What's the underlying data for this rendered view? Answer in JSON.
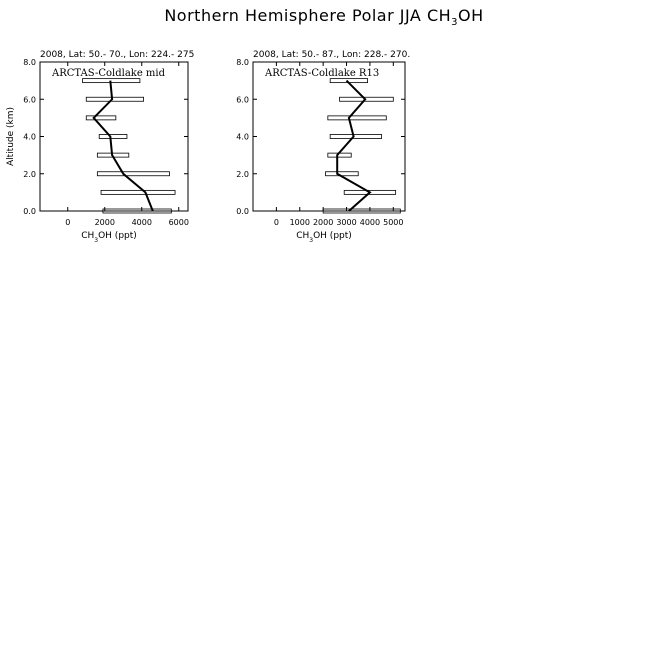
{
  "title": {
    "prefix": "Northern Hemisphere Polar JJA CH",
    "sub": "3",
    "suffix": "OH"
  },
  "colors": {
    "line": "#000000",
    "box": "#000000",
    "background": "#ffffff"
  },
  "chart_data": [
    {
      "type": "line",
      "header": "2008, Lat:  50.- 70., Lon: 224.- 275",
      "label": "ARCTAS-Coldlake mid",
      "xlabel": "CH3OH (ppt)",
      "ylabel": "Altitude (km)",
      "xlim": [
        -1500,
        6500
      ],
      "ylim": [
        0,
        8
      ],
      "xticks": [
        0,
        2000,
        4000,
        6000
      ],
      "yticks": [
        0.0,
        2.0,
        4.0,
        6.0,
        8.0
      ],
      "profile": [
        {
          "alt": 0.0,
          "value": 4600
        },
        {
          "alt": 1.0,
          "value": 4200
        },
        {
          "alt": 2.0,
          "value": 3000
        },
        {
          "alt": 3.0,
          "value": 2400
        },
        {
          "alt": 4.0,
          "value": 2300
        },
        {
          "alt": 5.0,
          "value": 1400
        },
        {
          "alt": 6.0,
          "value": 2400
        },
        {
          "alt": 7.0,
          "value": 2300
        }
      ],
      "ranges": [
        {
          "alt": 0.0,
          "low": 1900,
          "high": 5600
        },
        {
          "alt": 1.0,
          "low": 1800,
          "high": 5800
        },
        {
          "alt": 2.0,
          "low": 1600,
          "high": 5500
        },
        {
          "alt": 3.0,
          "low": 1600,
          "high": 3300
        },
        {
          "alt": 4.0,
          "low": 1700,
          "high": 3200
        },
        {
          "alt": 5.0,
          "low": 1000,
          "high": 2600
        },
        {
          "alt": 6.0,
          "low": 1000,
          "high": 4100
        },
        {
          "alt": 7.0,
          "low": 800,
          "high": 3900
        }
      ]
    },
    {
      "type": "line",
      "header": "2008, Lat:  50.- 87., Lon: 228.- 270.",
      "label": "ARCTAS-Coldlake R13",
      "xlabel": "CH3OH (ppt)",
      "ylabel": "",
      "xlim": [
        -1000,
        5500
      ],
      "ylim": [
        0,
        8
      ],
      "xticks": [
        0,
        1000,
        2000,
        3000,
        4000,
        5000
      ],
      "yticks": [
        0.0,
        2.0,
        4.0,
        6.0,
        8.0
      ],
      "profile": [
        {
          "alt": 0.0,
          "value": 3100
        },
        {
          "alt": 1.0,
          "value": 4000
        },
        {
          "alt": 2.0,
          "value": 2600
        },
        {
          "alt": 3.0,
          "value": 2600
        },
        {
          "alt": 4.0,
          "value": 3300
        },
        {
          "alt": 5.0,
          "value": 3100
        },
        {
          "alt": 6.0,
          "value": 3800
        },
        {
          "alt": 7.0,
          "value": 3000
        }
      ],
      "ranges": [
        {
          "alt": 0.0,
          "low": 2000,
          "high": 5300
        },
        {
          "alt": 1.0,
          "low": 2900,
          "high": 5100
        },
        {
          "alt": 2.0,
          "low": 2100,
          "high": 3500
        },
        {
          "alt": 3.0,
          "low": 2200,
          "high": 3200
        },
        {
          "alt": 4.0,
          "low": 2300,
          "high": 4500
        },
        {
          "alt": 5.0,
          "low": 2200,
          "high": 4700
        },
        {
          "alt": 6.0,
          "low": 2700,
          "high": 5000
        },
        {
          "alt": 7.0,
          "low": 2300,
          "high": 3900
        }
      ]
    }
  ]
}
